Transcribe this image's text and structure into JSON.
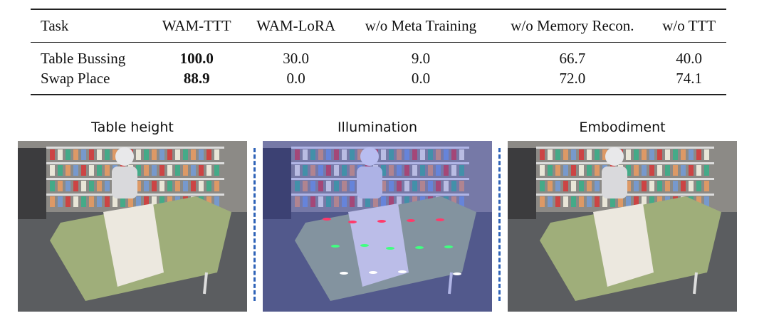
{
  "table": {
    "header": [
      "Task",
      "WAM-TTT",
      "WAM-LoRA",
      "w/o Meta Training",
      "w/o Memory Recon.",
      "w/o TTT"
    ],
    "rows": [
      [
        "Table Bussing",
        "100.0",
        "30.0",
        "9.0",
        "66.7",
        "40.0"
      ],
      [
        "Swap Place",
        "88.9",
        "0.0",
        "0.0",
        "72.0",
        "74.1"
      ]
    ]
  },
  "panels": [
    {
      "caption": "Table height"
    },
    {
      "caption": "Illumination"
    },
    {
      "caption": "Embodiment"
    }
  ]
}
